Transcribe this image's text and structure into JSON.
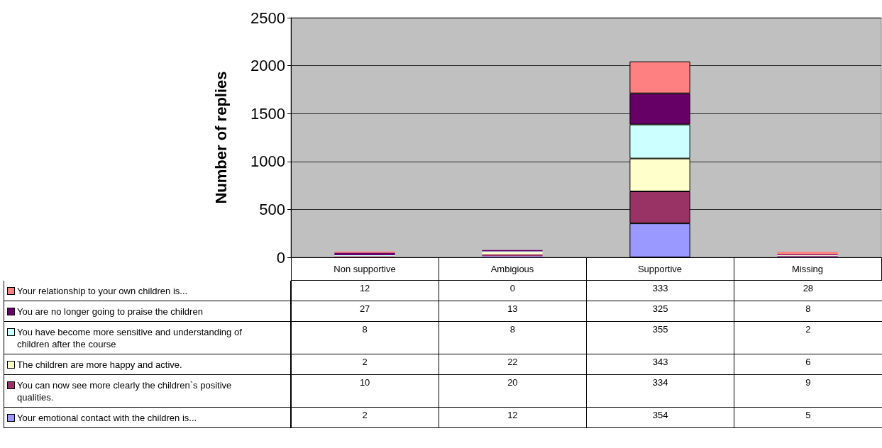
{
  "chart_data": {
    "type": "bar",
    "stacked": true,
    "ylabel": "Number of replies",
    "categories": [
      "Non supportive",
      "Ambigious",
      "Supportive",
      "Missing"
    ],
    "series": [
      {
        "name": "Your emotional contact with the children is...",
        "color": "#9999ff",
        "values": [
          2,
          12,
          354,
          5
        ]
      },
      {
        "name": "You can now see more clearly the children`s positive qualities.",
        "color": "#993366",
        "values": [
          10,
          20,
          334,
          9
        ]
      },
      {
        "name": "The children are more happy and active.",
        "color": "#ffffcc",
        "values": [
          2,
          22,
          343,
          6
        ]
      },
      {
        "name": "You have become more sensitive and understanding of children after the course",
        "color": "#ccffff",
        "values": [
          8,
          8,
          355,
          2
        ]
      },
      {
        "name": "You are no longer going to praise the children",
        "color": "#660066",
        "values": [
          27,
          13,
          325,
          8
        ]
      },
      {
        "name": "Your relationship to your own children is...",
        "color": "#ff8080",
        "values": [
          12,
          0,
          333,
          28
        ]
      }
    ],
    "ylim": [
      0,
      2500
    ],
    "yticks": [
      0,
      500,
      1000,
      1500,
      2000,
      2500
    ],
    "grid": "y",
    "data_labels": true,
    "legend": "bottom left"
  }
}
